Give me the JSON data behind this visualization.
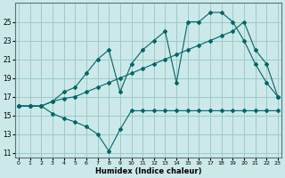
{
  "xlabel": "Humidex (Indice chaleur)",
  "ylabel": "",
  "bg_color": "#cce8e8",
  "grid_color": "#99cccc",
  "line_color": "#006666",
  "x_ticks": [
    0,
    1,
    2,
    3,
    4,
    5,
    6,
    7,
    8,
    9,
    10,
    11,
    12,
    13,
    14,
    15,
    16,
    17,
    18,
    19,
    20,
    21,
    22,
    23
  ],
  "y_ticks": [
    11,
    13,
    15,
    17,
    19,
    21,
    23,
    25
  ],
  "xlim": [
    -0.3,
    23.3
  ],
  "ylim": [
    10.5,
    27.0
  ],
  "lines": [
    {
      "x": [
        0,
        1,
        2,
        3,
        4,
        5,
        6,
        7,
        8,
        9,
        10,
        11,
        12,
        13,
        14,
        15,
        16,
        17,
        18,
        19,
        20,
        21,
        22,
        23
      ],
      "y": [
        16.0,
        16.0,
        16.0,
        15.2,
        14.7,
        14.3,
        13.8,
        13.0,
        11.2,
        13.5,
        15.5,
        15.5,
        15.5,
        15.5,
        15.5,
        15.5,
        15.5,
        15.5,
        15.5,
        15.5,
        15.5,
        15.5,
        15.5,
        15.5
      ]
    },
    {
      "x": [
        0,
        1,
        2,
        3,
        4,
        5,
        6,
        7,
        8,
        9,
        10,
        11,
        12,
        13,
        14,
        15,
        16,
        17,
        18,
        19,
        20,
        21,
        22,
        23
      ],
      "y": [
        16.0,
        16.0,
        16.0,
        16.5,
        16.8,
        17.0,
        17.5,
        18.0,
        18.5,
        19.0,
        19.5,
        20.0,
        20.5,
        21.0,
        21.5,
        22.0,
        22.5,
        23.0,
        23.5,
        24.0,
        25.0,
        22.0,
        20.5,
        17.0
      ]
    },
    {
      "x": [
        0,
        1,
        2,
        3,
        4,
        5,
        6,
        7,
        8,
        9,
        10,
        11,
        12,
        13,
        14,
        15,
        16,
        17,
        18,
        19,
        20,
        21,
        22,
        23
      ],
      "y": [
        16.0,
        16.0,
        16.0,
        16.5,
        17.5,
        18.0,
        19.5,
        21.0,
        22.0,
        17.5,
        20.5,
        22.0,
        23.0,
        24.0,
        18.5,
        25.0,
        25.0,
        26.0,
        26.0,
        25.0,
        23.0,
        20.5,
        18.5,
        17.0
      ]
    }
  ]
}
